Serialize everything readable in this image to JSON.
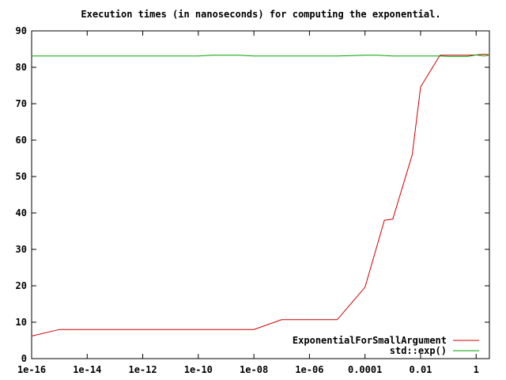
{
  "chart_data": {
    "type": "line",
    "title": "Execution times (in nanoseconds) for computing the exponential.",
    "xlabel": "",
    "ylabel": "",
    "x_scale": "log",
    "xlim": [
      1e-16,
      3
    ],
    "ylim": [
      0,
      90
    ],
    "x_ticks": [
      {
        "value": 1e-16,
        "label": "1e-16"
      },
      {
        "value": 1e-14,
        "label": "1e-14"
      },
      {
        "value": 1e-12,
        "label": "1e-12"
      },
      {
        "value": 1e-10,
        "label": "1e-10"
      },
      {
        "value": 1e-08,
        "label": "1e-08"
      },
      {
        "value": 1e-06,
        "label": "1e-06"
      },
      {
        "value": 0.0001,
        "label": "0.0001"
      },
      {
        "value": 0.01,
        "label": "0.01"
      },
      {
        "value": 1,
        "label": "1"
      }
    ],
    "y_ticks": [
      {
        "value": 0,
        "label": "0"
      },
      {
        "value": 10,
        "label": "10"
      },
      {
        "value": 20,
        "label": "20"
      },
      {
        "value": 30,
        "label": "30"
      },
      {
        "value": 40,
        "label": "40"
      },
      {
        "value": 50,
        "label": "50"
      },
      {
        "value": 60,
        "label": "60"
      },
      {
        "value": 70,
        "label": "70"
      },
      {
        "value": 80,
        "label": "80"
      },
      {
        "value": 90,
        "label": "90"
      }
    ],
    "grid": false,
    "legend_position": "bottom-right",
    "series": [
      {
        "name": "ExponentialForSmallArgument",
        "color": "#cc0000",
        "points": [
          [
            1e-16,
            6.2
          ],
          [
            1e-15,
            8.0
          ],
          [
            1e-14,
            8.0
          ],
          [
            1e-13,
            8.0
          ],
          [
            1e-12,
            8.0
          ],
          [
            1e-11,
            8.0
          ],
          [
            1e-10,
            8.0
          ],
          [
            1e-09,
            8.0
          ],
          [
            1e-08,
            8.0
          ],
          [
            1e-07,
            10.7
          ],
          [
            1e-06,
            10.7
          ],
          [
            1e-05,
            10.7
          ],
          [
            0.0001,
            19.6
          ],
          [
            0.0005,
            38.0
          ],
          [
            0.001,
            38.3
          ],
          [
            0.005,
            56.0
          ],
          [
            0.01,
            74.6
          ],
          [
            0.05,
            83.3
          ],
          [
            0.1,
            83.3
          ],
          [
            0.5,
            83.3
          ],
          [
            1,
            83.4
          ],
          [
            2,
            83.6
          ],
          [
            3,
            83.4
          ]
        ]
      },
      {
        "name": "std::exp()",
        "color": "#00a000",
        "points": [
          [
            1e-16,
            83.1
          ],
          [
            1e-14,
            83.1
          ],
          [
            1e-12,
            83.1
          ],
          [
            1e-10,
            83.1
          ],
          [
            3e-10,
            83.3
          ],
          [
            3e-09,
            83.3
          ],
          [
            1e-08,
            83.1
          ],
          [
            1e-06,
            83.1
          ],
          [
            1e-05,
            83.1
          ],
          [
            0.0001,
            83.3
          ],
          [
            0.0003,
            83.3
          ],
          [
            0.001,
            83.1
          ],
          [
            0.01,
            83.1
          ],
          [
            0.05,
            83.1
          ],
          [
            0.1,
            83.0
          ],
          [
            0.5,
            83.0
          ],
          [
            1,
            83.4
          ],
          [
            2,
            83.1
          ],
          [
            3,
            83.4
          ]
        ]
      }
    ]
  }
}
